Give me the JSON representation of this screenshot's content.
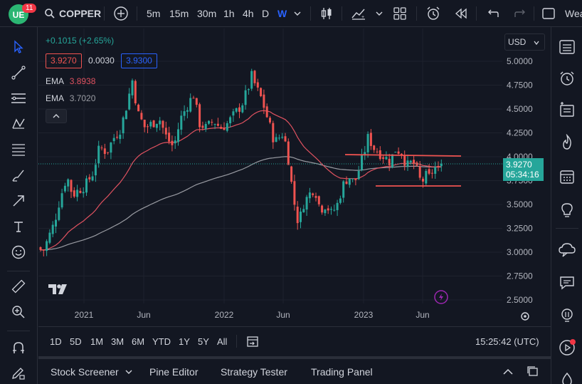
{
  "topbar": {
    "badge_count": "11",
    "symbol": "COPPER",
    "intervals": [
      "5m",
      "15m",
      "30m",
      "1h",
      "4h",
      "D",
      "W"
    ],
    "active_interval": "W",
    "right_text": "Wea"
  },
  "legend": {
    "change": "+0.1015 (+2.65%)",
    "bid": "3.9270",
    "spread": "0.0030",
    "ask": "3.9300",
    "ema1_label": "EMA",
    "ema1_value": "3.8938",
    "ema2_label": "EMA",
    "ema2_value": "3.7020"
  },
  "currency": "USD",
  "price_badge": {
    "price": "3.9270",
    "countdown": "05:34:16"
  },
  "range_buttons": [
    "1D",
    "5D",
    "1M",
    "3M",
    "6M",
    "YTD",
    "1Y",
    "5Y",
    "All"
  ],
  "clock": "15:25:42 (UTC)",
  "bottom_tabs": [
    "Stock Screener",
    "Pine Editor",
    "Strategy Tester",
    "Trading Panel"
  ],
  "colors": {
    "up": "#26a69a",
    "down": "#ef5350",
    "ema_fast": "#e05260",
    "ema_slow": "#9a9ca3",
    "accent": "#2962ff",
    "bg": "#131722"
  },
  "chart_data": {
    "type": "candlestick",
    "y_ticks": [
      "5.0000",
      "4.7500",
      "4.5000",
      "4.2500",
      "4.0000",
      "3.7500",
      "3.5000",
      "3.2500",
      "3.0000",
      "2.7500",
      "2.5000"
    ],
    "x_ticks": [
      "2021",
      "Jun",
      "2022",
      "Jun",
      "2023",
      "Jun"
    ],
    "ylim": [
      2.5,
      5.0
    ],
    "last_price": 3.927,
    "resistance_level": 4.0,
    "support_level": 3.69,
    "series": [
      {
        "name": "EMA",
        "value": 3.8938
      },
      {
        "name": "EMA",
        "value": 3.702
      }
    ]
  }
}
